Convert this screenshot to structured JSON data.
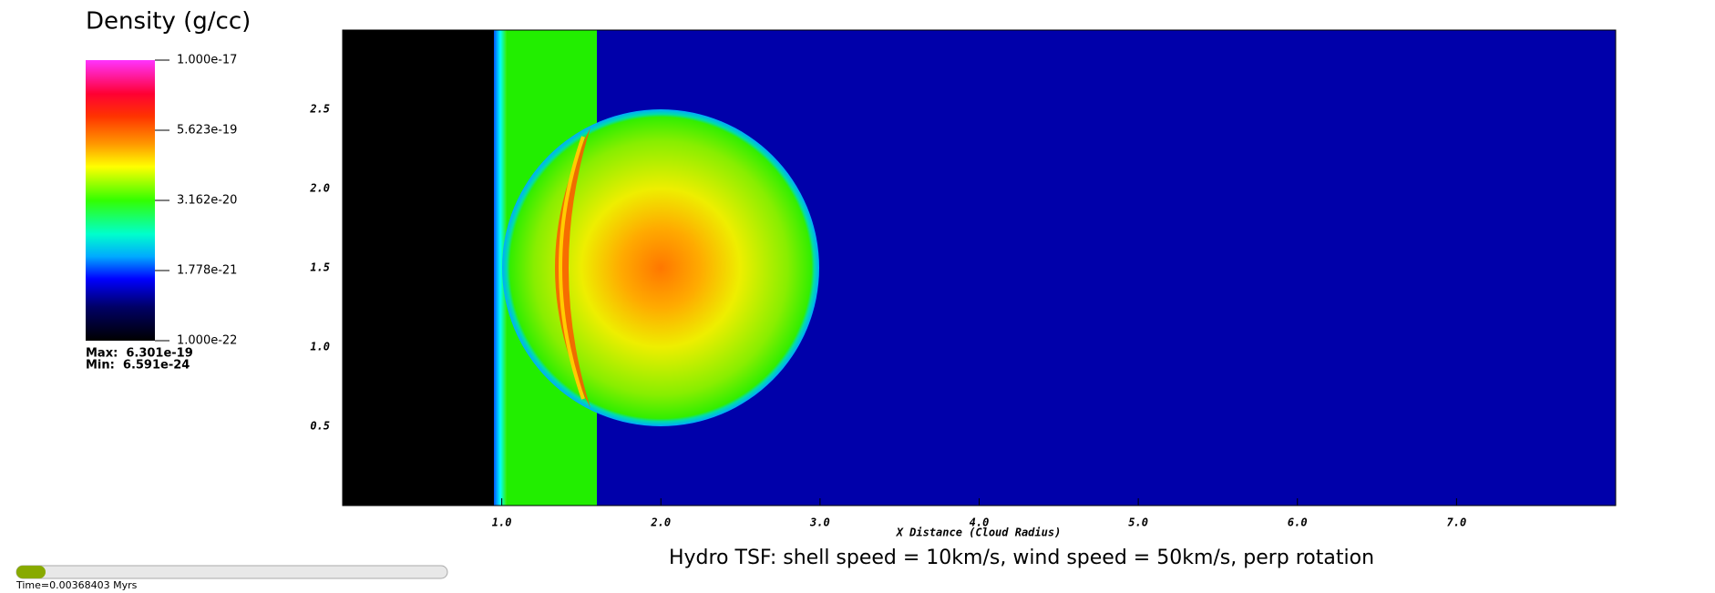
{
  "chart_data": {
    "type": "pseudocolor",
    "title": "Hydro TSF: shell speed = 10km/s, wind speed = 50km/s, perp rotation",
    "xlabel": "X Distance (Cloud Radius)",
    "xlim": [
      0,
      8
    ],
    "ylim": [
      0,
      3
    ],
    "xticks": [
      {
        "value": 1,
        "label": "1.0"
      },
      {
        "value": 2,
        "label": "2.0"
      },
      {
        "value": 3,
        "label": "3.0"
      },
      {
        "value": 4,
        "label": "4.0"
      },
      {
        "value": 5,
        "label": "5.0"
      },
      {
        "value": 6,
        "label": "6.0"
      },
      {
        "value": 7,
        "label": "7.0"
      }
    ],
    "yticks": [
      0.5,
      {
        "value": 1,
        "label": "1.0"
      },
      1.5,
      {
        "value": 2,
        "label": "2.0"
      },
      2.5
    ],
    "colorbar": {
      "title": "Density (g/cc)",
      "scale": "log",
      "lim": [
        1e-22,
        1e-17
      ],
      "ticks": [
        {
          "value": 1e-17,
          "label": "1.000e-17"
        },
        {
          "value": 5.623e-19,
          "label": "5.623e-19"
        },
        {
          "value": 3.162e-20,
          "label": "3.162e-20"
        },
        {
          "value": 1.778e-21,
          "label": "1.778e-21"
        },
        {
          "value": 1e-22,
          "label": "1.000e-22"
        }
      ],
      "max_label": "Max:  6.301e-19",
      "min_label": "Min:  6.591e-24"
    },
    "time_label": "Time=0.00368403 Myrs"
  }
}
